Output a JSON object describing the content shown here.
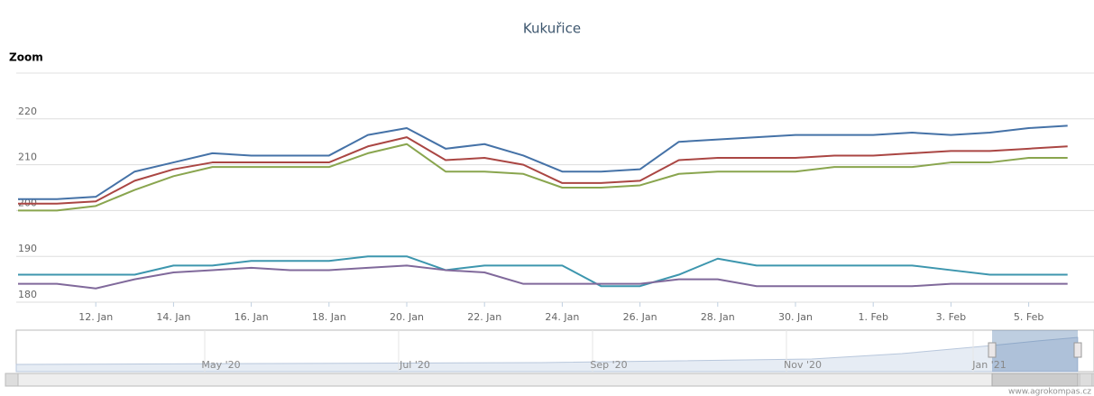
{
  "chart_data": {
    "type": "line",
    "title": "Kukuřice",
    "zoom_label": "Zoom",
    "categories": [
      null,
      null,
      "12. Jan",
      null,
      "14. Jan",
      null,
      "16. Jan",
      null,
      "18. Jan",
      null,
      "20. Jan",
      null,
      "22. Jan",
      null,
      "24. Jan",
      null,
      "26. Jan",
      null,
      "28. Jan",
      null,
      "30. Jan",
      null,
      "1. Feb",
      null,
      "3. Feb",
      null,
      "5. Feb",
      null
    ],
    "series": [
      {
        "color": "#4572a7",
        "values": [
          202.5,
          202.5,
          203,
          208.5,
          210.5,
          212.5,
          212,
          212,
          212,
          216.5,
          218,
          213.5,
          214.5,
          212,
          208.5,
          208.5,
          209,
          215,
          215.5,
          216,
          216.5,
          216.5,
          216.5,
          217,
          216.5,
          217,
          218,
          218.5
        ]
      },
      {
        "color": "#aa4643",
        "values": [
          201.5,
          201.5,
          202,
          206.5,
          209,
          210.5,
          210.5,
          210.5,
          210.5,
          214,
          216,
          211,
          211.5,
          210,
          206,
          206,
          206.5,
          211,
          211.5,
          211.5,
          211.5,
          212,
          212,
          212.5,
          213,
          213,
          213.5,
          214
        ]
      },
      {
        "color": "#89a54e",
        "values": [
          200,
          200,
          201,
          204.5,
          207.5,
          209.5,
          209.5,
          209.5,
          209.5,
          212.5,
          214.5,
          208.5,
          208.5,
          208,
          205,
          205,
          205.5,
          208,
          208.5,
          208.5,
          208.5,
          209.5,
          209.5,
          209.5,
          210.5,
          210.5,
          211.5,
          211.5
        ]
      },
      {
        "color": "#3d96ae",
        "values": [
          186,
          186,
          186,
          186,
          188,
          188,
          189,
          189,
          189,
          190,
          190,
          187,
          188,
          188,
          188,
          183.5,
          183.5,
          186,
          189.5,
          188,
          188,
          188,
          188,
          188,
          187,
          186,
          186,
          186
        ]
      },
      {
        "color": "#80699b",
        "values": [
          184,
          184,
          183,
          185,
          186.5,
          187,
          187.5,
          187,
          187,
          187.5,
          188,
          187,
          186.5,
          184,
          184,
          184,
          184,
          185,
          185,
          183.5,
          183.5,
          183.5,
          183.5,
          183.5,
          184,
          184,
          184,
          184
        ]
      }
    ],
    "ylim": [
      180,
      230
    ],
    "yticks": [
      180,
      190,
      200,
      210,
      220
    ],
    "grid": true,
    "navigator_labels": [
      "May '20",
      "Jul '20",
      "Sep '20",
      "Nov '20",
      "Jan '21"
    ],
    "credit": "www.agrokompas.cz"
  }
}
